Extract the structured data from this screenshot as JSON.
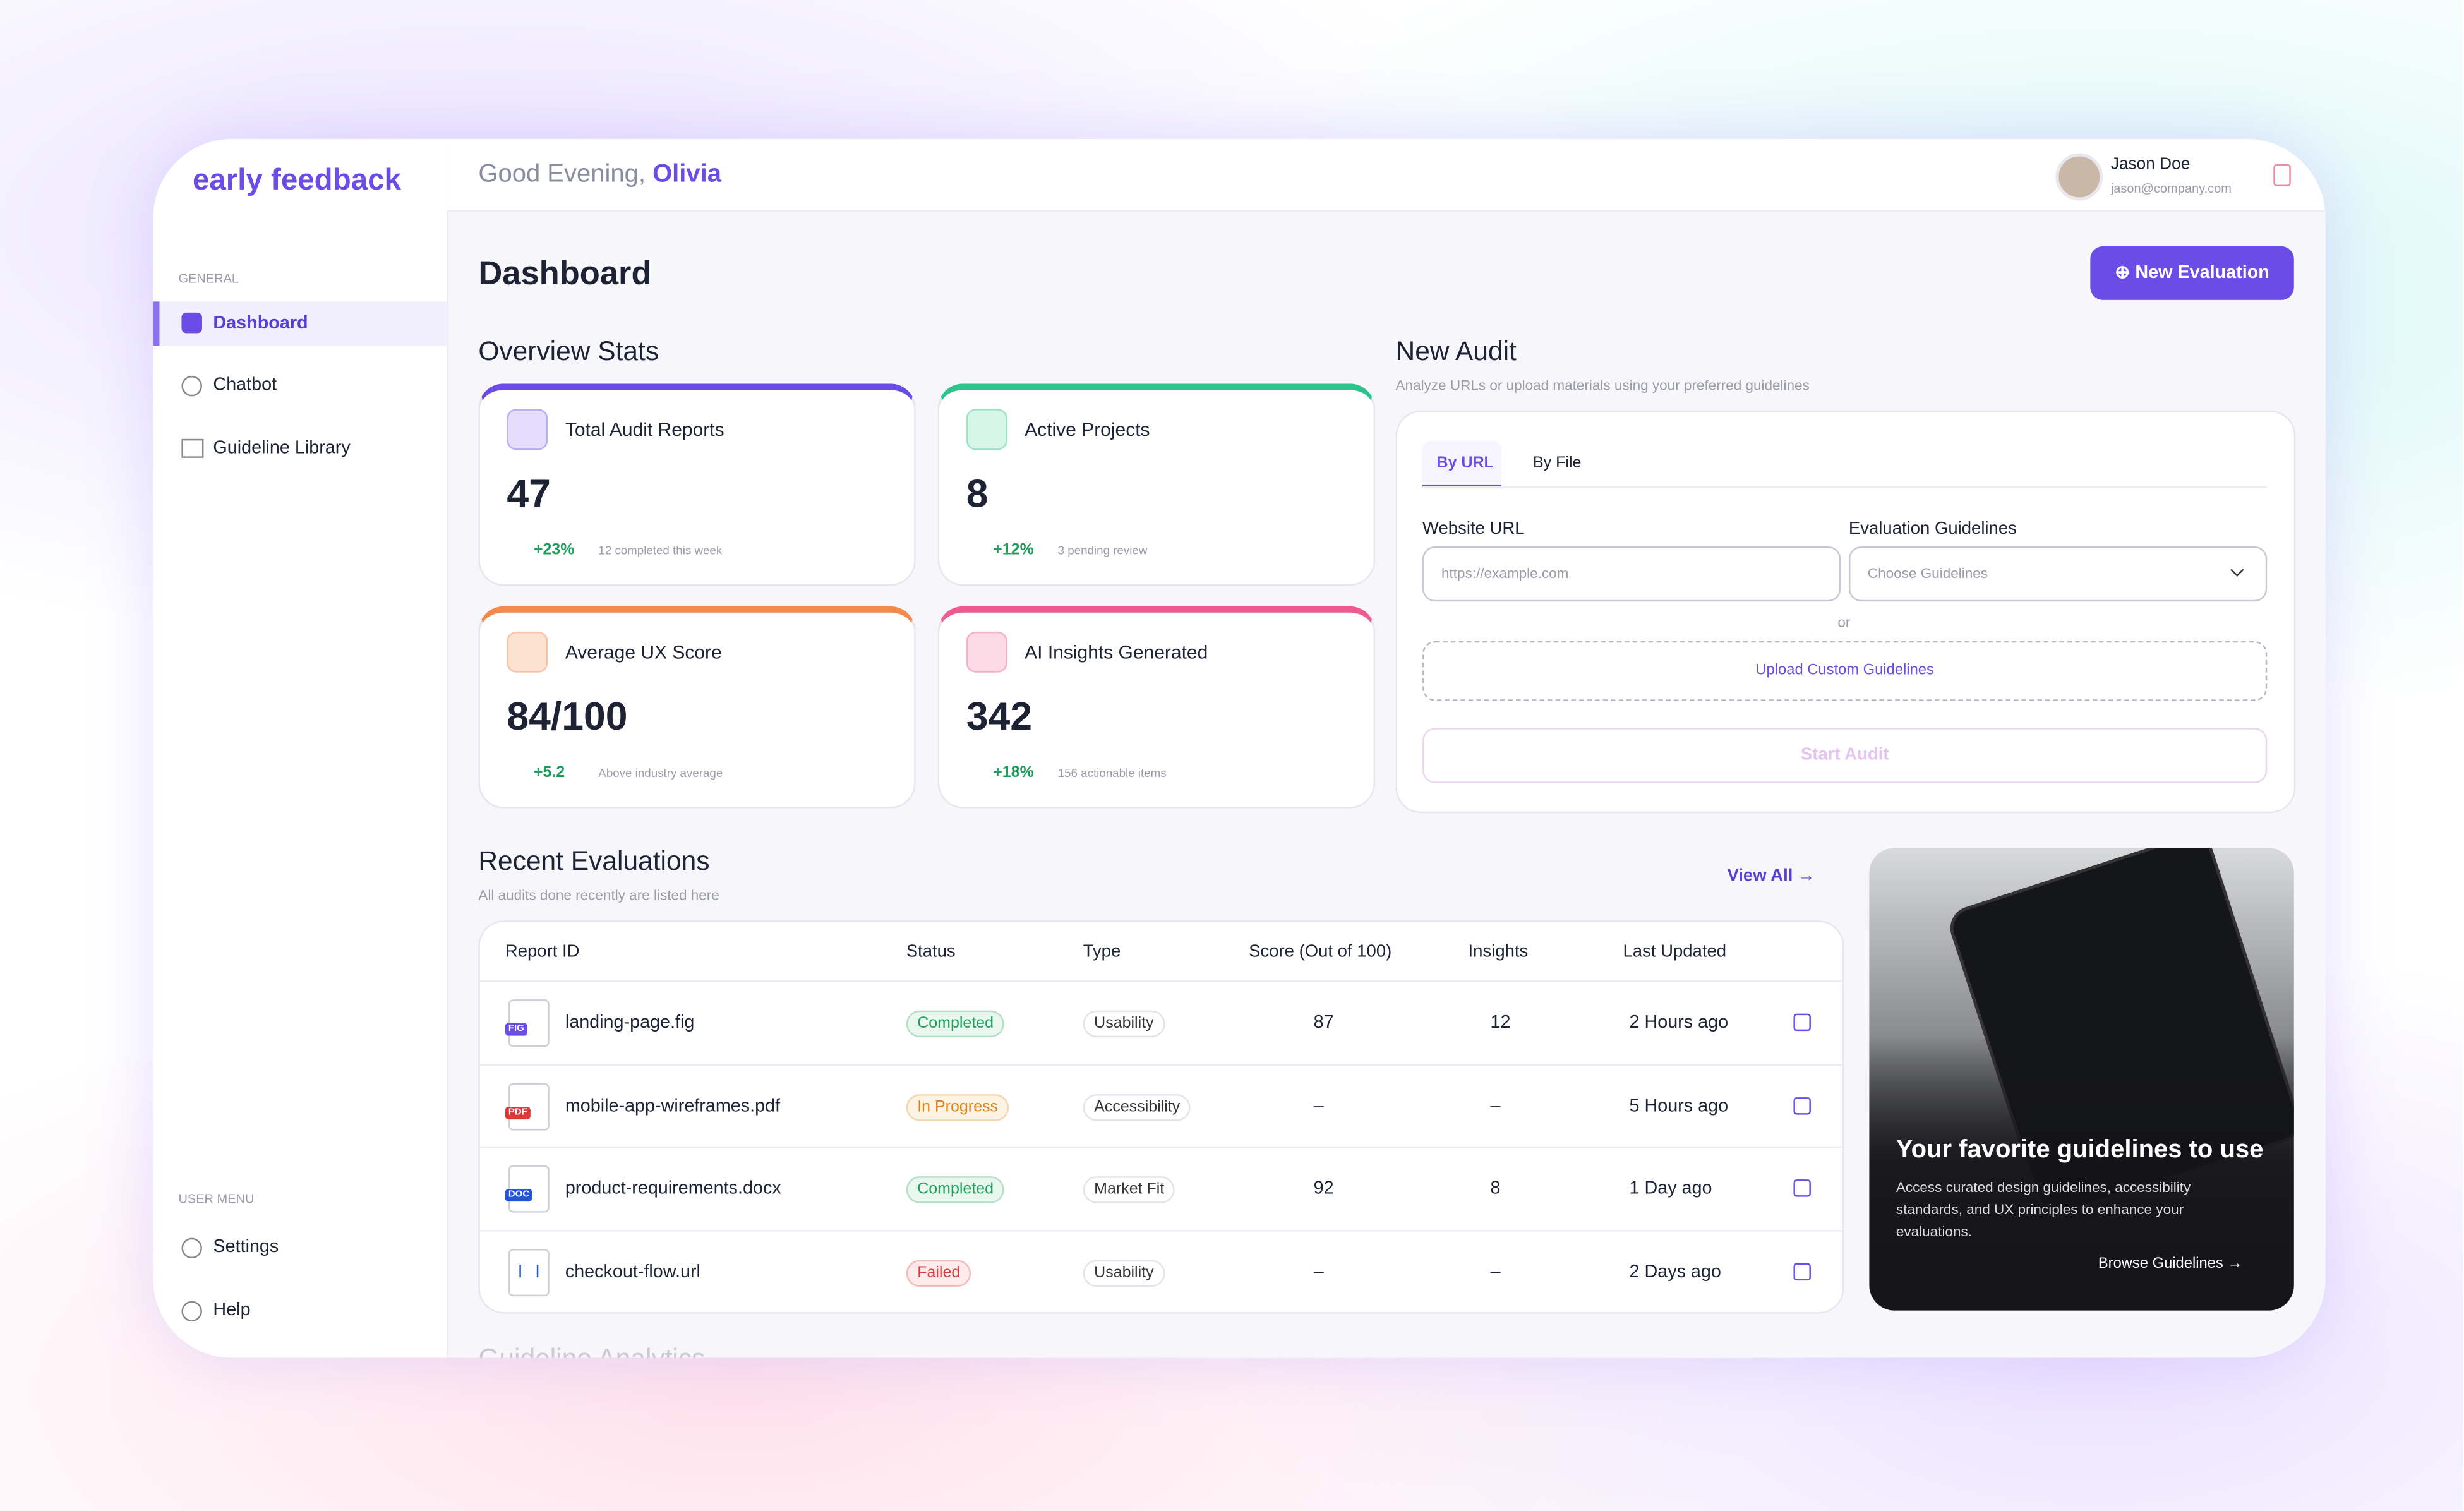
{
  "brand": "early feedback",
  "header": {
    "greeting": "Good Evening,",
    "name": "Olivia",
    "user_name": "Jason Doe",
    "user_email": "jason@company.com"
  },
  "sidebar": {
    "general_label": "GENERAL",
    "items": [
      "Dashboard",
      "Chatbot",
      "Guideline Library"
    ],
    "user_menu_label": "USER MENU",
    "user_items": [
      "Settings",
      "Help"
    ]
  },
  "page": {
    "title": "Dashboard",
    "new_button": "New Evaluation"
  },
  "overview": {
    "title": "Overview Stats",
    "cards": [
      {
        "label": "Total Audit Reports",
        "value": "47",
        "change": "+23%",
        "note": "12 completed this week"
      },
      {
        "label": "Active Projects",
        "value": "8",
        "change": "+12%",
        "note": "3 pending review"
      },
      {
        "label": "Average UX Score",
        "value": "84/100",
        "change": "+5.2",
        "note": "Above industry average"
      },
      {
        "label": "AI Insights Generated",
        "value": "342",
        "change": "+18%",
        "note": "156 actionable items"
      }
    ]
  },
  "new_audit": {
    "title": "New Audit",
    "subtitle": "Analyze URLs or upload materials using your preferred guidelines",
    "tabs": [
      "By URL",
      "By File"
    ],
    "url_label": "Website URL",
    "url_placeholder": "https://example.com",
    "guidelines_label": "Evaluation Guidelines",
    "guidelines_placeholder": "Choose Guidelines",
    "or": "or",
    "upload": "Upload Custom Guidelines",
    "start": "Start Audit"
  },
  "recent": {
    "title": "Recent Evaluations",
    "subtitle": "All audits done recently are listed here",
    "view_all": "View All",
    "columns": [
      "Report ID",
      "Status",
      "Type",
      "Score (Out of 100)",
      "Insights",
      "Last Updated"
    ],
    "rows": [
      {
        "icon": "FIG",
        "id": "landing-page.fig",
        "status": "Completed",
        "type": "Usability",
        "score": "87",
        "insights": "12",
        "updated": "2 Hours ago"
      },
      {
        "icon": "PDF",
        "id": "mobile-app-wireframes.pdf",
        "status": "In Progress",
        "type": "Accessibility",
        "score": "–",
        "insights": "–",
        "updated": "5 Hours ago"
      },
      {
        "icon": "DOC",
        "id": "product-requirements.docx",
        "status": "Completed",
        "type": "Market Fit",
        "score": "92",
        "insights": "8",
        "updated": "1 Day ago"
      },
      {
        "id": "checkout-flow.url",
        "status": "Failed",
        "type": "Usability",
        "score": "–",
        "insights": "–",
        "updated": "2 Days ago"
      }
    ]
  },
  "promo": {
    "title": "Your favorite guidelines to use",
    "text": "Access curated design guidelines, accessibility standards, and UX principles to enhance your evaluations.",
    "link": "Browse Guidelines"
  },
  "next_section": "Guideline Analytics"
}
